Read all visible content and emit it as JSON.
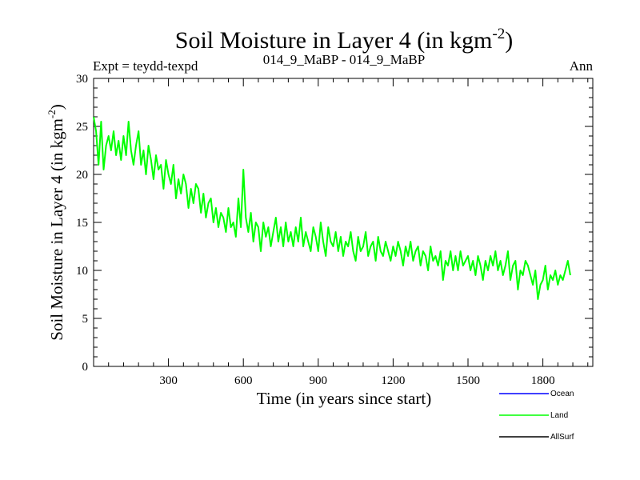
{
  "chart_data": {
    "type": "line",
    "title": "Soil Moisture in Layer 4 (in kgm",
    "title_superscript": "-2",
    "title_close": ")",
    "left_label": "Expt = teydd-texpd",
    "center_label": "014_9_MaBP - 014_9_MaBP",
    "right_label": "Ann",
    "xlabel": "Time (in years since start)",
    "ylabel": "Soil Moisture in Layer 4 (in kgm",
    "ylabel_superscript": "-2",
    "ylabel_close": ")",
    "xlim": [
      0,
      2000
    ],
    "ylim": [
      0,
      30
    ],
    "xticks": [
      300,
      600,
      900,
      1200,
      1500,
      1800
    ],
    "yticks": [
      0,
      5,
      10,
      15,
      20,
      25,
      30
    ],
    "series": [
      {
        "name": "Land",
        "color": "#00ff00",
        "x_step": 10,
        "values": [
          26,
          24.5,
          21,
          25.5,
          20.5,
          23,
          24,
          22.5,
          24.5,
          22,
          23.5,
          21.5,
          24,
          22,
          25.5,
          22.5,
          21,
          23,
          24.5,
          21,
          22.5,
          20,
          23,
          21.5,
          19.5,
          22,
          20.5,
          21,
          18.5,
          21.5,
          20,
          19,
          21,
          17.5,
          19.5,
          18,
          20,
          19,
          16.5,
          18.5,
          17,
          19,
          18.5,
          16,
          18,
          15.5,
          17,
          17.5,
          15,
          16.5,
          14.5,
          16,
          15.5,
          14,
          16.5,
          14.5,
          15,
          13.5,
          17.5,
          14.5,
          20.5,
          15.5,
          14,
          16,
          13,
          15,
          14.5,
          12,
          15,
          13.5,
          14.5,
          12.5,
          14,
          15.5,
          13,
          14.5,
          12.5,
          15,
          13,
          14,
          12.5,
          14.5,
          13,
          15.5,
          12.5,
          14,
          13,
          12,
          14.5,
          13.5,
          12,
          15,
          13,
          11.5,
          14.5,
          13,
          12.5,
          14,
          12,
          13.5,
          11.5,
          13,
          12.5,
          14,
          12,
          11,
          13.5,
          12,
          12.5,
          14,
          11.5,
          12.5,
          13,
          11,
          13.5,
          12,
          11.5,
          13,
          12,
          11,
          12.5,
          11.5,
          13,
          12,
          10.5,
          12.5,
          11.5,
          13,
          11,
          12,
          12.5,
          10.5,
          12,
          11.5,
          10,
          12.5,
          11,
          11.5,
          10.5,
          12,
          9,
          11,
          10.5,
          12,
          10,
          11.5,
          10,
          12,
          10.5,
          11,
          11.5,
          10,
          11,
          9.5,
          11.5,
          10.5,
          9,
          11,
          10,
          11.5,
          10.5,
          12,
          10,
          11,
          9.5,
          10.5,
          12,
          9,
          10.5,
          11,
          8,
          10,
          9.5,
          11,
          10.5,
          9.5,
          8.5,
          10,
          7,
          8.5,
          9,
          10.5,
          8,
          9.5,
          9,
          10,
          8.5,
          9.5,
          9,
          10,
          11,
          9.5
        ]
      },
      {
        "name": "Ocean",
        "color": "#0000ff"
      },
      {
        "name": "AllSurf",
        "color": "#000000"
      }
    ]
  }
}
